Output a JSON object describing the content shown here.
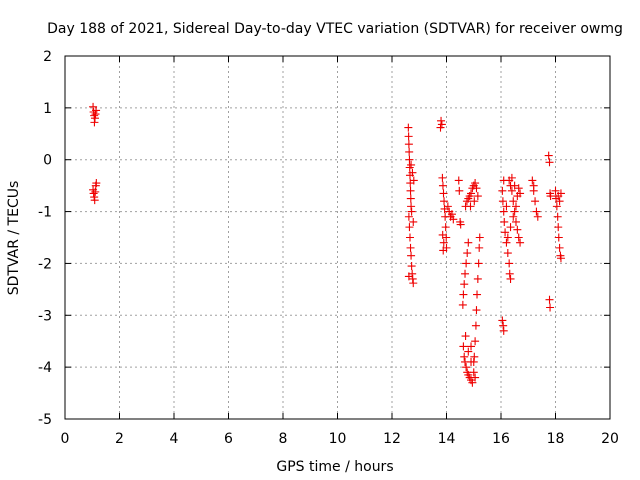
{
  "chart_data": {
    "type": "scatter",
    "title": "Day 188 of 2021, Sidereal Day-to-day VTEC variation (SDTVAR) for receiver owmg",
    "xlabel": "GPS time / hours",
    "ylabel": "SDTVAR / TECUs",
    "xlim": [
      0,
      20
    ],
    "ylim": [
      -5,
      2
    ],
    "xticks": [
      0,
      2,
      4,
      6,
      8,
      10,
      12,
      14,
      16,
      18,
      20
    ],
    "yticks": [
      -5,
      -4,
      -3,
      -2,
      -1,
      0,
      1,
      2
    ],
    "xtick_labels": [
      "0",
      "2",
      "4",
      "6",
      "8",
      "10",
      "12",
      "14",
      "16",
      "18",
      "20"
    ],
    "ytick_labels": [
      "-5",
      "-4",
      "-3",
      "-2",
      "-1",
      "0",
      "1",
      "2"
    ],
    "grid": true,
    "marker": "+",
    "marker_color": "#ee0000",
    "series": [
      {
        "name": "SDTVAR",
        "points": [
          [
            1.03,
            1.02
          ],
          [
            1.05,
            0.92
          ],
          [
            1.07,
            0.85
          ],
          [
            1.08,
            0.72
          ],
          [
            1.1,
            0.8
          ],
          [
            1.12,
            0.88
          ],
          [
            1.14,
            0.95
          ],
          [
            1.03,
            -0.58
          ],
          [
            1.05,
            -0.65
          ],
          [
            1.07,
            -0.72
          ],
          [
            1.09,
            -0.78
          ],
          [
            1.11,
            -0.62
          ],
          [
            1.13,
            -0.5
          ],
          [
            1.15,
            -0.45
          ],
          [
            12.6,
            0.62
          ],
          [
            12.61,
            0.45
          ],
          [
            12.62,
            0.3
          ],
          [
            12.63,
            0.15
          ],
          [
            12.64,
            0.0
          ],
          [
            12.65,
            -0.15
          ],
          [
            12.66,
            -0.3
          ],
          [
            12.67,
            -0.45
          ],
          [
            12.68,
            -0.6
          ],
          [
            12.69,
            -0.75
          ],
          [
            12.7,
            -0.9
          ],
          [
            12.62,
            -1.1
          ],
          [
            12.64,
            -1.3
          ],
          [
            12.66,
            -1.5
          ],
          [
            12.68,
            -1.7
          ],
          [
            12.7,
            -1.85
          ],
          [
            12.72,
            -2.05
          ],
          [
            12.74,
            -2.2
          ],
          [
            12.76,
            -2.3
          ],
          [
            12.78,
            -2.38
          ],
          [
            12.62,
            -2.25
          ],
          [
            12.7,
            -0.1
          ],
          [
            12.75,
            -0.25
          ],
          [
            12.8,
            -0.4
          ],
          [
            12.72,
            -1.0
          ],
          [
            12.78,
            -1.2
          ],
          [
            13.8,
            0.75
          ],
          [
            13.83,
            0.68
          ],
          [
            13.78,
            0.62
          ],
          [
            13.85,
            -0.35
          ],
          [
            13.87,
            -0.5
          ],
          [
            13.89,
            -0.65
          ],
          [
            13.91,
            -0.8
          ],
          [
            13.93,
            -0.95
          ],
          [
            13.95,
            -1.1
          ],
          [
            13.97,
            -1.3
          ],
          [
            13.99,
            -1.5
          ],
          [
            14.0,
            -1.7
          ],
          [
            13.9,
            -1.6
          ],
          [
            13.88,
            -1.75
          ],
          [
            13.86,
            -1.45
          ],
          [
            14.05,
            -0.9
          ],
          [
            14.1,
            -1.0
          ],
          [
            14.15,
            -1.1
          ],
          [
            14.2,
            -1.05
          ],
          [
            14.25,
            -1.15
          ],
          [
            14.45,
            -0.4
          ],
          [
            14.47,
            -0.6
          ],
          [
            14.5,
            -1.2
          ],
          [
            14.52,
            -1.25
          ],
          [
            14.7,
            -0.9
          ],
          [
            14.75,
            -0.8
          ],
          [
            14.8,
            -0.75
          ],
          [
            14.85,
            -0.7
          ],
          [
            14.9,
            -0.65
          ],
          [
            14.95,
            -0.55
          ],
          [
            15.0,
            -0.5
          ],
          [
            15.05,
            -0.45
          ],
          [
            15.1,
            -0.55
          ],
          [
            15.15,
            -0.7
          ],
          [
            15.02,
            -0.8
          ],
          [
            14.88,
            -0.9
          ],
          [
            14.6,
            -2.8
          ],
          [
            14.62,
            -2.6
          ],
          [
            14.65,
            -2.4
          ],
          [
            14.68,
            -2.2
          ],
          [
            14.72,
            -2.0
          ],
          [
            14.76,
            -1.8
          ],
          [
            14.8,
            -1.6
          ],
          [
            14.62,
            -3.6
          ],
          [
            14.65,
            -3.8
          ],
          [
            14.68,
            -3.9
          ],
          [
            14.72,
            -4.0
          ],
          [
            14.76,
            -4.1
          ],
          [
            14.8,
            -4.15
          ],
          [
            14.85,
            -4.2
          ],
          [
            14.9,
            -4.25
          ],
          [
            14.95,
            -4.3
          ],
          [
            15.0,
            -4.1
          ],
          [
            15.02,
            -3.8
          ],
          [
            15.05,
            -3.5
          ],
          [
            15.08,
            -3.2
          ],
          [
            15.1,
            -2.9
          ],
          [
            15.12,
            -2.6
          ],
          [
            15.15,
            -2.3
          ],
          [
            15.18,
            -2.0
          ],
          [
            15.2,
            -1.7
          ],
          [
            15.22,
            -1.5
          ],
          [
            14.7,
            -3.4
          ],
          [
            14.9,
            -3.6
          ],
          [
            15.0,
            -3.9
          ],
          [
            15.05,
            -4.2
          ],
          [
            14.8,
            -3.7
          ],
          [
            14.9,
            -3.9
          ],
          [
            16.05,
            -3.1
          ],
          [
            16.08,
            -3.2
          ],
          [
            16.1,
            -3.3
          ],
          [
            16.05,
            -0.6
          ],
          [
            16.07,
            -0.8
          ],
          [
            16.1,
            -1.0
          ],
          [
            16.12,
            -1.2
          ],
          [
            16.15,
            -1.4
          ],
          [
            16.2,
            -1.6
          ],
          [
            16.25,
            -1.8
          ],
          [
            16.3,
            -2.0
          ],
          [
            16.32,
            -2.2
          ],
          [
            16.35,
            -2.3
          ],
          [
            16.3,
            -0.4
          ],
          [
            16.35,
            -0.5
          ],
          [
            16.4,
            -0.6
          ],
          [
            16.45,
            -0.8
          ],
          [
            16.5,
            -1.0
          ],
          [
            16.55,
            -1.2
          ],
          [
            16.6,
            -1.35
          ],
          [
            16.65,
            -1.5
          ],
          [
            16.7,
            -1.6
          ],
          [
            16.4,
            -0.35
          ],
          [
            16.5,
            -0.5
          ],
          [
            16.6,
            -0.7
          ],
          [
            16.65,
            -0.55
          ],
          [
            16.7,
            -0.65
          ],
          [
            16.55,
            -0.9
          ],
          [
            16.45,
            -1.1
          ],
          [
            16.35,
            -1.3
          ],
          [
            16.25,
            -1.5
          ],
          [
            16.1,
            -0.4
          ],
          [
            16.2,
            -0.9
          ],
          [
            17.15,
            -0.4
          ],
          [
            17.2,
            -0.6
          ],
          [
            17.25,
            -0.8
          ],
          [
            17.3,
            -1.0
          ],
          [
            17.35,
            -1.1
          ],
          [
            17.2,
            -0.5
          ],
          [
            17.75,
            0.08
          ],
          [
            17.78,
            -0.05
          ],
          [
            17.8,
            -0.65
          ],
          [
            17.82,
            -0.7
          ],
          [
            17.78,
            -2.7
          ],
          [
            17.8,
            -2.85
          ],
          [
            18.0,
            -0.6
          ],
          [
            18.02,
            -0.75
          ],
          [
            18.05,
            -0.9
          ],
          [
            18.08,
            -1.1
          ],
          [
            18.1,
            -1.3
          ],
          [
            18.12,
            -1.5
          ],
          [
            18.15,
            -1.7
          ],
          [
            18.18,
            -1.85
          ],
          [
            18.2,
            -1.9
          ],
          [
            18.1,
            -0.7
          ],
          [
            18.15,
            -0.8
          ],
          [
            18.2,
            -0.65
          ]
        ]
      }
    ]
  }
}
